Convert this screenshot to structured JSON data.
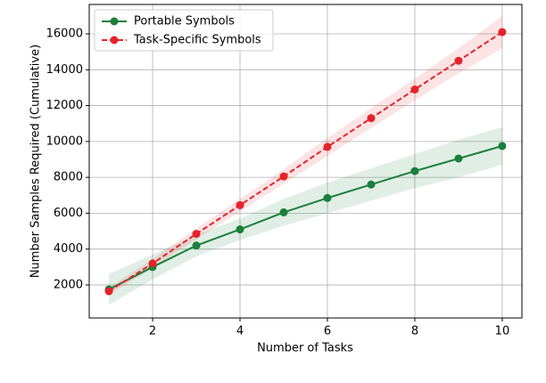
{
  "chart_data": {
    "type": "line",
    "xlabel": "Number of Tasks",
    "ylabel": "Number Samples Required (Cumulative)",
    "x": [
      1,
      2,
      3,
      4,
      5,
      6,
      7,
      8,
      9,
      10
    ],
    "series": [
      {
        "name": "Portable Symbols",
        "color": "#1a7f3c",
        "style": "solid",
        "values": [
          1750,
          3000,
          4200,
          5100,
          6050,
          6850,
          7600,
          8350,
          9050,
          9750
        ],
        "lower": [
          900,
          2300,
          3600,
          4500,
          5300,
          6000,
          6700,
          7400,
          8000,
          8700
        ],
        "upper": [
          2600,
          3700,
          4800,
          5700,
          6800,
          7700,
          8500,
          9300,
          10100,
          10800
        ]
      },
      {
        "name": "Task-Specific Symbols",
        "color": "#e5232b",
        "style": "dashed",
        "values": [
          1650,
          3200,
          4850,
          6450,
          8050,
          9700,
          11300,
          12900,
          14500,
          16100
        ],
        "lower": [
          1450,
          2950,
          4550,
          6100,
          7650,
          9200,
          10750,
          12300,
          13800,
          15200
        ],
        "upper": [
          1850,
          3450,
          5150,
          6800,
          8450,
          10200,
          11850,
          13500,
          15200,
          17000
        ]
      }
    ],
    "xlim": [
      0.55,
      10.45
    ],
    "xticks": [
      2,
      4,
      6,
      8,
      10
    ],
    "ylim": [
      160,
      17640
    ],
    "yticks": [
      2000,
      4000,
      6000,
      8000,
      10000,
      12000,
      14000,
      16000
    ],
    "grid": true,
    "legend": "upper left"
  }
}
